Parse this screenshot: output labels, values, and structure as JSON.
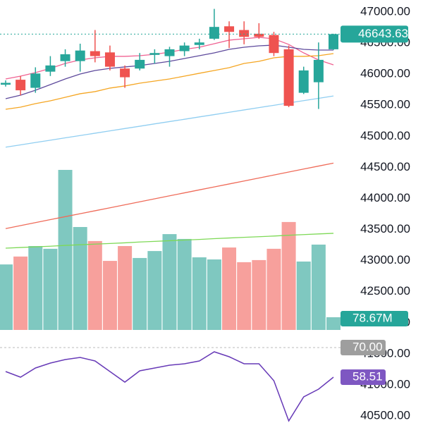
{
  "chart_data": {
    "type": "candlestick",
    "open": [
      45830,
      45910,
      45780,
      46040,
      46210,
      46210,
      46370,
      46350,
      46090,
      46090,
      46310,
      46290,
      46370,
      46470,
      46570,
      46770,
      46710,
      46650,
      46630,
      46400,
      45700,
      45870,
      46400
    ],
    "high": [
      45900,
      45970,
      46110,
      46290,
      46400,
      46490,
      46710,
      46460,
      46140,
      46340,
      46400,
      46440,
      46510,
      46570,
      47050,
      46850,
      46850,
      46820,
      46680,
      46460,
      46120,
      46510,
      46650
    ],
    "low": [
      45800,
      45660,
      45700,
      45970,
      46120,
      46040,
      46190,
      46060,
      45780,
      46060,
      46170,
      46120,
      46290,
      46400,
      46550,
      46420,
      46480,
      46570,
      46290,
      45470,
      45680,
      45440,
      46390
    ],
    "close": [
      45860,
      45740,
      46010,
      46140,
      46320,
      46380,
      46290,
      46120,
      45950,
      46230,
      46340,
      46400,
      46460,
      46510,
      46760,
      46680,
      46600,
      46600,
      46340,
      45490,
      46060,
      46230,
      46643.63
    ],
    "up_color": "#26a69a",
    "down_color": "#ef5350",
    "ylim": [
      40387,
      47193
    ],
    "yticks": [
      {
        "value": 47000,
        "label": "47000.00"
      },
      {
        "value": 46500,
        "label": "46500.00"
      },
      {
        "value": 46000,
        "label": "46000.00"
      },
      {
        "value": 45500,
        "label": "45500.00"
      },
      {
        "value": 45000,
        "label": "45000.00"
      },
      {
        "value": 44500,
        "label": "44500.00"
      },
      {
        "value": 44000,
        "label": "44000.00"
      },
      {
        "value": 43500,
        "label": "43500.00"
      },
      {
        "value": 43000,
        "label": "43000.00"
      },
      {
        "value": 42500,
        "label": "42500.00"
      },
      {
        "value": 42000,
        "label": "42000.00"
      },
      {
        "value": 41500,
        "label": "41500.00"
      },
      {
        "value": 41000,
        "label": "41000.00"
      },
      {
        "value": 40500,
        "label": "40500.00"
      }
    ],
    "moving_averages": [
      {
        "color": "#f06292",
        "values": [
          45923,
          45968,
          46025,
          46093,
          46172,
          46229,
          46263,
          46286,
          46286,
          46297,
          46320,
          46354,
          46399,
          46433,
          46490,
          46547,
          46569,
          46592,
          46569,
          46478,
          46342,
          46229,
          46150
        ]
      },
      {
        "color": "#5e4a9c",
        "values": [
          45605,
          45662,
          45741,
          45832,
          45923,
          46002,
          46059,
          46093,
          46116,
          46138,
          46172,
          46206,
          46252,
          46297,
          46342,
          46399,
          46433,
          46456,
          46467,
          46433,
          46399,
          46388,
          46388
        ]
      },
      {
        "color": "#f5a623",
        "values": [
          45435,
          45469,
          45526,
          45571,
          45628,
          45685,
          45719,
          45776,
          45810,
          45855,
          45889,
          45923,
          45968,
          46014,
          46059,
          46104,
          46172,
          46206,
          46263,
          46286,
          46286,
          46297,
          46331
        ]
      },
      {
        "color": "#90cef1",
        "values": [
          44825,
          44862,
          44900,
          44937,
          44975,
          45012,
          45050,
          45087,
          45125,
          45162,
          45200,
          45237,
          45274,
          45312,
          45349,
          45387,
          45424,
          45462,
          45499,
          45537,
          45574,
          45611,
          45649
        ]
      },
      {
        "color": "#ef6c5a",
        "values": [
          43515,
          43563,
          43611,
          43659,
          43707,
          43755,
          43802,
          43850,
          43898,
          43946,
          43994,
          44042,
          44090,
          44138,
          44186,
          44233,
          44281,
          44329,
          44377,
          44425,
          44473,
          44521,
          44569
        ]
      }
    ],
    "volume": {
      "values": [
        406,
        455,
        520,
        503,
        992,
        638,
        551,
        428,
        520,
        446,
        489,
        594,
        564,
        450,
        437,
        511,
        420,
        433,
        503,
        669,
        424,
        529,
        78.67
      ],
      "value_labels": [
        null,
        null,
        null,
        null,
        null,
        null,
        null,
        null,
        null,
        null,
        null,
        null,
        null,
        null,
        null,
        null,
        null,
        null,
        null,
        null,
        null,
        null,
        "78.67M"
      ],
      "ylim": [
        0,
        1040
      ],
      "up_color": "#7fc8c0",
      "down_color": "#f7a09c",
      "ma_color": "#7ed957",
      "ma_values": [
        507,
        511,
        515,
        519,
        524,
        528,
        532,
        536,
        540,
        545,
        549,
        553,
        557,
        561,
        566,
        570,
        574,
        578,
        582,
        587,
        591,
        595,
        599
      ]
    },
    "rsi": {
      "values": [
        60.7,
        58.51,
        62.07,
        63.98,
        65.35,
        66.17,
        64.8,
        60.7,
        56.59,
        60.97,
        62.07,
        63.16,
        63.71,
        64.8,
        68.36,
        66.44,
        63.71,
        63.71,
        57.14,
        41.55,
        50.85,
        53.86,
        58.51
      ],
      "ylim": [
        40.73,
        76.29
      ],
      "color": "#673ab7",
      "label_color": "#7e57c2",
      "level": {
        "value": 70,
        "label": "70.00"
      },
      "level_color": "#9e9e9e"
    }
  }
}
